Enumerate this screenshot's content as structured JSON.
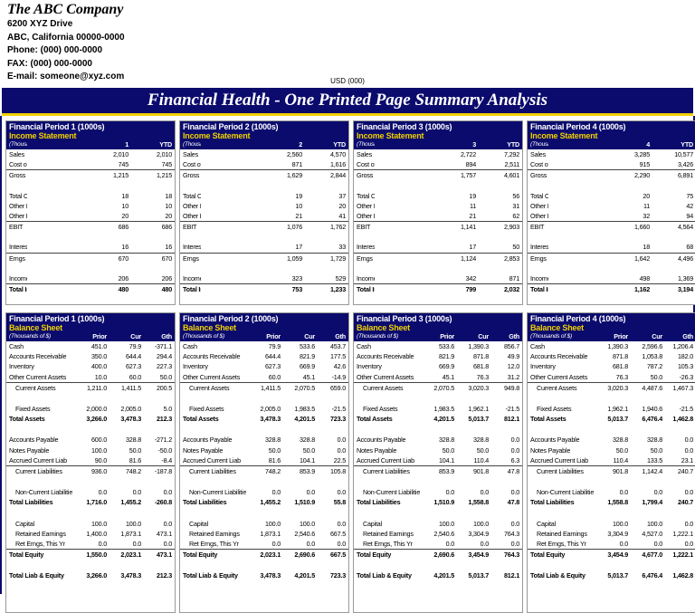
{
  "company": {
    "name": "The ABC Company",
    "address1": "6200 XYZ Drive",
    "address2": "ABC, California 00000-0000",
    "phone": "Phone: (000) 000-0000",
    "fax": "FAX: (000) 000-0000",
    "email": "E-mail: someone@xyz.com"
  },
  "currency": "USD (000)",
  "banner": "Financial Health - One Printed Page Summary Analysis",
  "income_statements": [
    {
      "period": "Financial Period 1 (1000s)",
      "subtitle": "Income Statement",
      "units": "(Thousands of $)",
      "columns": [
        "1",
        "YTD"
      ],
      "rows": [
        [
          "Sales",
          "2,010",
          "2,010"
        ],
        [
          "Cost of Sales",
          "745",
          "745"
        ],
        [
          "Gross Margin",
          "1,215",
          "1,215"
        ],
        [
          "Total Op. Exp",
          "18",
          "18"
        ],
        [
          "Other Income",
          "10",
          "10"
        ],
        [
          "Other Expense",
          "20",
          "20"
        ],
        [
          "EBIT",
          "686",
          "686"
        ],
        [
          "Interest Expense",
          "16",
          "16"
        ],
        [
          "Erngs Before Tax",
          "670",
          "670"
        ],
        [
          "Income Taxes",
          "206",
          "206"
        ],
        [
          "Total Income",
          "480",
          "480"
        ]
      ]
    },
    {
      "period": "Financial Period 2 (1000s)",
      "subtitle": "Income Statement",
      "units": "(Thousands of $)",
      "columns": [
        "2",
        "YTD"
      ],
      "rows": [
        [
          "Sales",
          "2,560",
          "4,570"
        ],
        [
          "Cost of Sales",
          "871",
          "1,616"
        ],
        [
          "Gross Margin",
          "1,629",
          "2,844"
        ],
        [
          "Total Op. Exp",
          "19",
          "37"
        ],
        [
          "Other Income",
          "10",
          "20"
        ],
        [
          "Other Expense",
          "21",
          "41"
        ],
        [
          "EBIT",
          "1,076",
          "1,762"
        ],
        [
          "Interest Expense",
          "17",
          "33"
        ],
        [
          "Erngs Before Tax",
          "1,059",
          "1,729"
        ],
        [
          "Income Taxes",
          "323",
          "529"
        ],
        [
          "Total Income",
          "753",
          "1,233"
        ]
      ]
    },
    {
      "period": "Financial Period 3 (1000s)",
      "subtitle": "Income Statement",
      "units": "(Thousands of $)",
      "columns": [
        "3",
        "YTD"
      ],
      "rows": [
        [
          "Sales",
          "2,722",
          "7,292"
        ],
        [
          "Cost of Sales",
          "894",
          "2,511"
        ],
        [
          "Gross Margin",
          "1,757",
          "4,601"
        ],
        [
          "Total Op. Exp",
          "19",
          "56"
        ],
        [
          "Other Income",
          "11",
          "31"
        ],
        [
          "Other Expense",
          "21",
          "62"
        ],
        [
          "EBIT",
          "1,141",
          "2,903"
        ],
        [
          "Interest Expense",
          "17",
          "50"
        ],
        [
          "Erngs Before Tax",
          "1,124",
          "2,853"
        ],
        [
          "Income Taxes",
          "342",
          "871"
        ],
        [
          "Total Income",
          "799",
          "2,032"
        ]
      ]
    },
    {
      "period": "Financial Period 4 (1000s)",
      "subtitle": "Income Statement",
      "units": "(Thousands of $)",
      "columns": [
        "4",
        "YTD"
      ],
      "rows": [
        [
          "Sales",
          "3,285",
          "10,577"
        ],
        [
          "Cost of Sales",
          "915",
          "3,426"
        ],
        [
          "Gross Margin",
          "2,290",
          "6,891"
        ],
        [
          "Total Op. Exp",
          "20",
          "75"
        ],
        [
          "Other Income",
          "11",
          "42"
        ],
        [
          "Other Expense",
          "32",
          "94"
        ],
        [
          "EBIT",
          "1,660",
          "4,564"
        ],
        [
          "Interest Expense",
          "18",
          "68"
        ],
        [
          "Erngs Before Tax",
          "1,642",
          "4,496"
        ],
        [
          "Income Taxes",
          "498",
          "1,369"
        ],
        [
          "Total Income",
          "1,162",
          "3,194"
        ]
      ]
    }
  ],
  "balance_sheets": [
    {
      "period": "Financial Period 1 (1000s)",
      "subtitle": "Balance Sheet",
      "units": "(Thousands of $)",
      "columns": [
        "Prior",
        "Cur",
        "Gth"
      ],
      "rows": [
        [
          "Cash",
          "451.0",
          "79.9",
          "-371.1"
        ],
        [
          "Accounts Receivable",
          "350.0",
          "644.4",
          "294.4"
        ],
        [
          "Inventory",
          "400.0",
          "627.3",
          "227.3"
        ],
        [
          "Other Current Assets",
          "10.0",
          "60.0",
          "50.0"
        ],
        [
          "Current Assets",
          "1,211.0",
          "1,411.5",
          "200.5"
        ],
        [
          "Fixed Assets",
          "2,000.0",
          "2,005.0",
          "5.0"
        ],
        [
          "Total Assets",
          "3,266.0",
          "3,478.3",
          "212.3"
        ],
        [
          "Accounts Payable",
          "600.0",
          "328.8",
          "-271.2"
        ],
        [
          "Notes Payable",
          "100.0",
          "50.0",
          "-50.0"
        ],
        [
          "Accrued Current Liab",
          "90.0",
          "81.6",
          "-8.4"
        ],
        [
          "Current Liabilities",
          "936.0",
          "748.2",
          "-187.8"
        ],
        [
          "Non-Current Liabilities",
          "0.0",
          "0.0",
          "0.0"
        ],
        [
          "Total Liabilities",
          "1,716.0",
          "1,455.2",
          "-260.8"
        ],
        [
          "Capital",
          "100.0",
          "100.0",
          "0.0"
        ],
        [
          "Retained Earnings",
          "1,400.0",
          "1,873.1",
          "473.1"
        ],
        [
          "Ret Erngs, This Yr",
          "0.0",
          "0.0",
          "0.0"
        ],
        [
          "Total Equity",
          "1,550.0",
          "2,023.1",
          "473.1"
        ],
        [
          "Total Liab & Equity",
          "3,266.0",
          "3,478.3",
          "212.3"
        ]
      ]
    },
    {
      "period": "Financial Period 2 (1000s)",
      "subtitle": "Balance Sheet",
      "units": "(Thousands of $)",
      "columns": [
        "Prior",
        "Cur",
        "Gth"
      ],
      "rows": [
        [
          "Cash",
          "79.9",
          "533.6",
          "453.7"
        ],
        [
          "Accounts Receivable",
          "644.4",
          "821.9",
          "177.5"
        ],
        [
          "Inventory",
          "627.3",
          "669.9",
          "42.6"
        ],
        [
          "Other Current Assets",
          "60.0",
          "45.1",
          "-14.9"
        ],
        [
          "Current Assets",
          "1,411.5",
          "2,070.5",
          "659.0"
        ],
        [
          "Fixed Assets",
          "2,005.0",
          "1,983.5",
          "-21.5"
        ],
        [
          "Total Assets",
          "3,478.3",
          "4,201.5",
          "723.3"
        ],
        [
          "Accounts Payable",
          "328.8",
          "328.8",
          "0.0"
        ],
        [
          "Notes Payable",
          "50.0",
          "50.0",
          "0.0"
        ],
        [
          "Accrued Current Liab",
          "81.6",
          "104.1",
          "22.5"
        ],
        [
          "Current Liabilities",
          "748.2",
          "853.9",
          "105.8"
        ],
        [
          "Non-Current Liabilities",
          "0.0",
          "0.0",
          "0.0"
        ],
        [
          "Total Liabilities",
          "1,455.2",
          "1,510.9",
          "55.8"
        ],
        [
          "Capital",
          "100.0",
          "100.0",
          "0.0"
        ],
        [
          "Retained Earnings",
          "1,873.1",
          "2,540.6",
          "667.5"
        ],
        [
          "Ret Erngs, This Yr",
          "0.0",
          "0.0",
          "0.0"
        ],
        [
          "Total Equity",
          "2,023.1",
          "2,690.6",
          "667.5"
        ],
        [
          "Total Liab & Equity",
          "3,478.3",
          "4,201.5",
          "723.3"
        ]
      ]
    },
    {
      "period": "Financial Period 3  (1000s)",
      "subtitle": "Balance Sheet",
      "units": "(Thousands of $)",
      "columns": [
        "Prior",
        "Cur",
        "Gth"
      ],
      "rows": [
        [
          "Cash",
          "533.6",
          "1,390.3",
          "856.7"
        ],
        [
          "Accounts Receivable",
          "821.9",
          "871.8",
          "49.9"
        ],
        [
          "Inventory",
          "669.9",
          "681.8",
          "12.0"
        ],
        [
          "Other Current Assets",
          "45.1",
          "76.3",
          "31.2"
        ],
        [
          "Current Assets",
          "2,070.5",
          "3,020.3",
          "949.8"
        ],
        [
          "Fixed Assets",
          "1,983.5",
          "1,962.1",
          "-21.5"
        ],
        [
          "Total Assets",
          "4,201.5",
          "5,013.7",
          "812.1"
        ],
        [
          "Accounts Payable",
          "328.8",
          "328.8",
          "0.0"
        ],
        [
          "Notes Payable",
          "50.0",
          "50.0",
          "0.0"
        ],
        [
          "Accrued Current Liab",
          "104.1",
          "110.4",
          "6.3"
        ],
        [
          "Current Liabilities",
          "853.9",
          "901.8",
          "47.8"
        ],
        [
          "Non-Current Liabilities",
          "0.0",
          "0.0",
          "0.0"
        ],
        [
          "Total Liabilities",
          "1,510.9",
          "1,558.8",
          "47.8"
        ],
        [
          "Capital",
          "100.0",
          "100.0",
          "0.0"
        ],
        [
          "Retained Earnings",
          "2,540.6",
          "3,304.9",
          "764.3"
        ],
        [
          "Ret Erngs, This Yr",
          "0.0",
          "0.0",
          "0.0"
        ],
        [
          "Total Equity",
          "2,690.6",
          "3,454.9",
          "764.3"
        ],
        [
          "Total Liab & Equity",
          "4,201.5",
          "5,013.7",
          "812.1"
        ]
      ]
    },
    {
      "period": "Financial Period 4 (1000s)",
      "subtitle": "Balance Sheet",
      "units": "(Thousands of $)",
      "columns": [
        "Prior",
        "Cur",
        "Gth"
      ],
      "rows": [
        [
          "Cash",
          "1,390.3",
          "2,596.6",
          "1,206.4"
        ],
        [
          "Accounts Receivable",
          "871.8",
          "1,053.8",
          "182.0"
        ],
        [
          "Inventory",
          "681.8",
          "787.2",
          "105.3"
        ],
        [
          "Other Current Assets",
          "76.3",
          "50.0",
          "-26.3"
        ],
        [
          "Current Assets",
          "3,020.3",
          "4,487.6",
          "1,467.3"
        ],
        [
          "Fixed Assets",
          "1,962.1",
          "1,940.6",
          "-21.5"
        ],
        [
          "Total Assets",
          "5,013.7",
          "6,476.4",
          "1,462.8"
        ],
        [
          "Accounts Payable",
          "328.8",
          "328.8",
          "0.0"
        ],
        [
          "Notes Payable",
          "50.0",
          "50.0",
          "0.0"
        ],
        [
          "Accrued Current Liab",
          "110.4",
          "133.5",
          "23.1"
        ],
        [
          "Current Liabilities",
          "901.8",
          "1,142.4",
          "240.7"
        ],
        [
          "Non-Current Liabilities",
          "0.0",
          "0.0",
          "0.0"
        ],
        [
          "Total Liabilities",
          "1,558.8",
          "1,799.4",
          "240.7"
        ],
        [
          "Capital",
          "100.0",
          "100.0",
          "0.0"
        ],
        [
          "Retained Earnings",
          "3,304.9",
          "4,527.0",
          "1,222.1"
        ],
        [
          "Ret Erngs, This Yr",
          "0.0",
          "0.0",
          "0.0"
        ],
        [
          "Total Equity",
          "3,454.9",
          "4,677.0",
          "1,222.1"
        ],
        [
          "Total Liab & Equity",
          "5,013.7",
          "6,476.4",
          "1,462.8"
        ]
      ]
    }
  ]
}
